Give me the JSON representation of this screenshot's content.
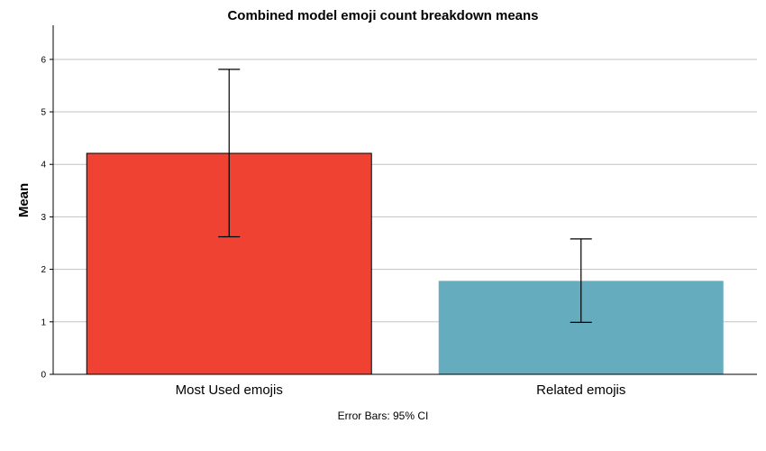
{
  "chart_data": {
    "type": "bar",
    "title": "Combined model emoji count breakdown means",
    "xlabel": "",
    "ylabel": "Mean",
    "categories": [
      "Most Used emojis",
      "Related emojis"
    ],
    "values": [
      4.21,
      1.78
    ],
    "error_bars": {
      "label": "Error Bars: 95% CI",
      "lower": [
        2.62,
        0.99
      ],
      "upper": [
        5.81,
        2.58
      ]
    },
    "colors": [
      "#ef4232",
      "#65adbe"
    ],
    "ylim": [
      0,
      6.65
    ],
    "yticks": [
      0,
      1,
      2,
      3,
      4,
      5,
      6
    ],
    "grid": true,
    "legend": "none"
  }
}
